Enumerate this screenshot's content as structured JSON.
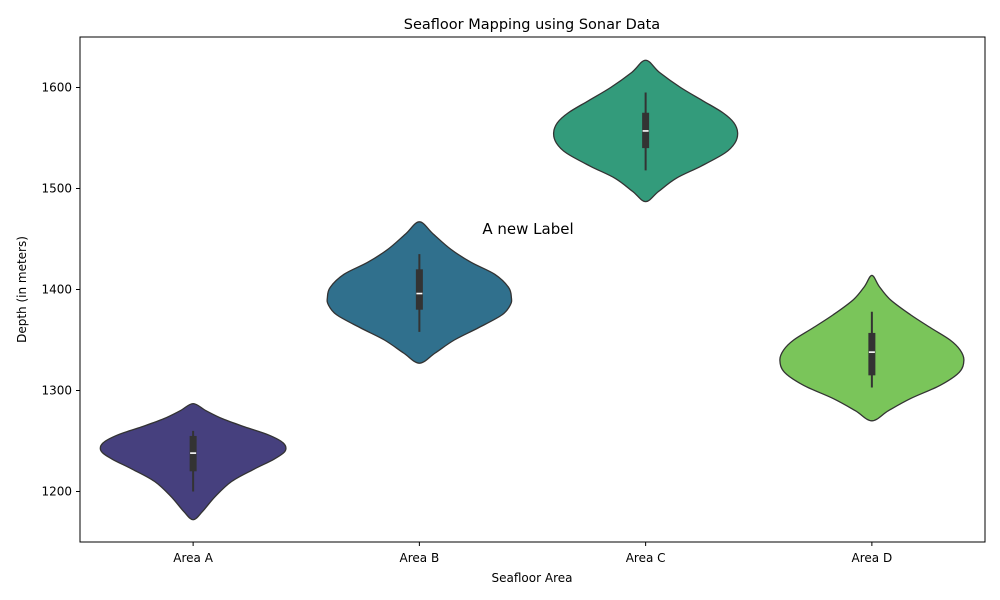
{
  "chart_data": {
    "type": "violin",
    "title": "Seafloor Mapping using Sonar Data",
    "xlabel": "Seafloor Area",
    "ylabel": "Depth (in meters)",
    "ylim": [
      1150,
      1650
    ],
    "yticks": [
      1200,
      1300,
      1400,
      1500,
      1600
    ],
    "categories": [
      "Area A",
      "Area B",
      "Area C",
      "Area D"
    ],
    "colors": [
      "#46407e",
      "#30708d",
      "#339b7b",
      "#7ac55a"
    ],
    "violins": [
      {
        "category": "Area A",
        "median": 1238,
        "q1": 1220,
        "q3": 1255,
        "whisker_low": 1200,
        "whisker_high": 1260,
        "density": [
          [
            1172,
            0
          ],
          [
            1180,
            0.1
          ],
          [
            1195,
            0.24
          ],
          [
            1210,
            0.42
          ],
          [
            1222,
            0.66
          ],
          [
            1232,
            0.88
          ],
          [
            1240,
            1.0
          ],
          [
            1248,
            0.98
          ],
          [
            1256,
            0.82
          ],
          [
            1264,
            0.56
          ],
          [
            1272,
            0.32
          ],
          [
            1280,
            0.14
          ],
          [
            1287,
            0
          ]
        ]
      },
      {
        "category": "Area B",
        "median": 1396,
        "q1": 1380,
        "q3": 1420,
        "whisker_low": 1358,
        "whisker_high": 1435,
        "density": [
          [
            1327,
            0
          ],
          [
            1337,
            0.17
          ],
          [
            1350,
            0.38
          ],
          [
            1362,
            0.64
          ],
          [
            1375,
            0.9
          ],
          [
            1385,
            0.99
          ],
          [
            1392,
            1.0
          ],
          [
            1402,
            0.97
          ],
          [
            1415,
            0.82
          ],
          [
            1427,
            0.56
          ],
          [
            1440,
            0.34
          ],
          [
            1455,
            0.15
          ],
          [
            1467,
            0
          ]
        ]
      },
      {
        "category": "Area C",
        "median": 1557,
        "q1": 1540,
        "q3": 1575,
        "whisker_low": 1518,
        "whisker_high": 1595,
        "density": [
          [
            1487,
            0
          ],
          [
            1497,
            0.14
          ],
          [
            1510,
            0.33
          ],
          [
            1522,
            0.6
          ],
          [
            1535,
            0.86
          ],
          [
            1545,
            0.97
          ],
          [
            1555,
            1.0
          ],
          [
            1565,
            0.96
          ],
          [
            1575,
            0.84
          ],
          [
            1587,
            0.62
          ],
          [
            1600,
            0.38
          ],
          [
            1615,
            0.15
          ],
          [
            1627,
            0
          ]
        ]
      },
      {
        "category": "Area D",
        "median": 1338,
        "q1": 1315,
        "q3": 1357,
        "whisker_low": 1303,
        "whisker_high": 1378,
        "density": [
          [
            1270,
            0
          ],
          [
            1280,
            0.18
          ],
          [
            1292,
            0.42
          ],
          [
            1305,
            0.74
          ],
          [
            1318,
            0.95
          ],
          [
            1330,
            1.0
          ],
          [
            1340,
            0.96
          ],
          [
            1350,
            0.85
          ],
          [
            1362,
            0.64
          ],
          [
            1375,
            0.42
          ],
          [
            1390,
            0.2
          ],
          [
            1403,
            0.08
          ],
          [
            1414,
            0
          ]
        ]
      }
    ],
    "annotations": [
      {
        "text": "A new Label",
        "x": "Area B",
        "y": 1450
      }
    ],
    "grid": false,
    "legend": "none"
  }
}
